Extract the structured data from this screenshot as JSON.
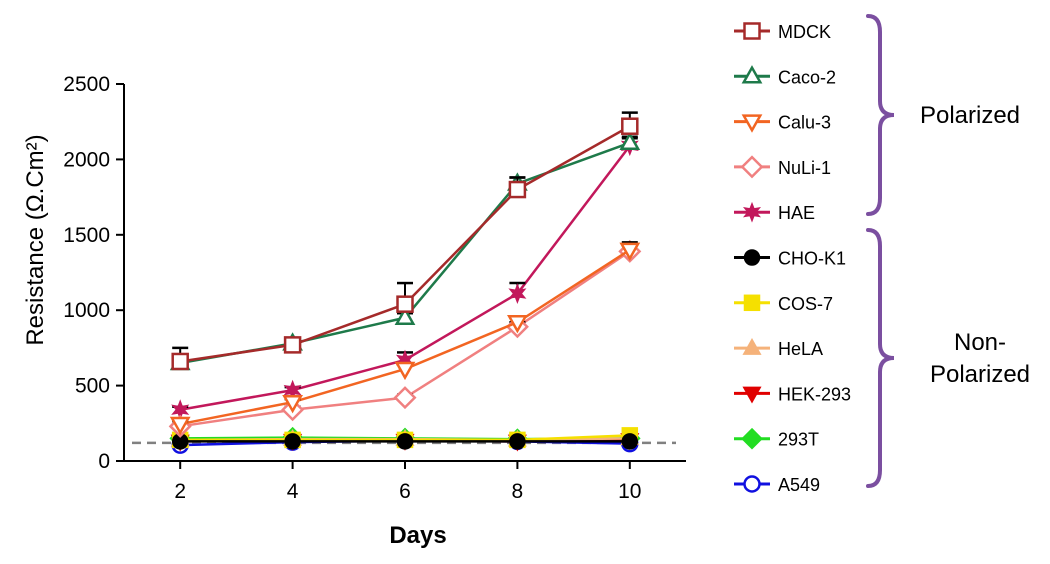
{
  "chart_data": {
    "type": "line",
    "xlabel": "Days",
    "ylabel": "Resistance (Ω.Cm²)",
    "x": [
      2,
      4,
      6,
      8,
      10
    ],
    "xlim": [
      1,
      11
    ],
    "ylim": [
      0,
      2500
    ],
    "x_ticks": [
      2,
      4,
      6,
      8,
      10
    ],
    "y_ticks": [
      0,
      500,
      1000,
      1500,
      2000,
      2500
    ],
    "reference_line": {
      "y": 120,
      "style": "dashed",
      "color": "#808080"
    },
    "grid": false,
    "legend_position": "right",
    "series": [
      {
        "name": "MDCK",
        "values": [
          660,
          770,
          1040,
          1800,
          2220
        ],
        "errors": [
          90,
          30,
          140,
          80,
          90
        ],
        "color": "#A52A2A",
        "marker": "square-open"
      },
      {
        "name": "Caco-2",
        "values": [
          650,
          780,
          950,
          1840,
          2110
        ],
        "errors": [
          40,
          20,
          30,
          40,
          30
        ],
        "color": "#1E7A4A",
        "marker": "triangle-up-open"
      },
      {
        "name": "Calu-3",
        "values": [
          245,
          390,
          610,
          920,
          1400
        ],
        "errors": [
          20,
          20,
          30,
          30,
          50
        ],
        "color": "#F26522",
        "marker": "triangle-down-open"
      },
      {
        "name": "NuLi-1",
        "values": [
          230,
          340,
          420,
          890,
          1390
        ],
        "errors": [
          15,
          20,
          20,
          30,
          40
        ],
        "color": "#F08080",
        "marker": "diamond-open"
      },
      {
        "name": "HAE",
        "values": [
          340,
          470,
          670,
          1110,
          2090
        ],
        "errors": [
          20,
          20,
          50,
          70,
          60
        ],
        "color": "#C2185B",
        "marker": "star"
      },
      {
        "name": "CHO-K1",
        "values": [
          130,
          130,
          130,
          130,
          130
        ],
        "color": "#000000",
        "marker": "circle"
      },
      {
        "name": "COS-7",
        "values": [
          140,
          140,
          140,
          140,
          170
        ],
        "color": "#F5E000",
        "marker": "square"
      },
      {
        "name": "HeLA",
        "values": [
          140,
          145,
          145,
          140,
          150
        ],
        "color": "#F5B27A",
        "marker": "triangle-up"
      },
      {
        "name": "HEK-293",
        "values": [
          130,
          135,
          135,
          130,
          140
        ],
        "color": "#E00000",
        "marker": "triangle-down"
      },
      {
        "name": "293T",
        "values": [
          150,
          155,
          150,
          145,
          150
        ],
        "color": "#22DD22",
        "marker": "diamond"
      },
      {
        "name": "A549",
        "values": [
          105,
          125,
          135,
          130,
          115
        ],
        "color": "#1010E0",
        "marker": "circle-open"
      }
    ],
    "groups": [
      {
        "label_lines": [
          "Polarized"
        ],
        "members": [
          "MDCK",
          "Caco-2",
          "Calu-3",
          "NuLi-1",
          "HAE"
        ]
      },
      {
        "label_lines": [
          "Non-",
          "Polarized"
        ],
        "members": [
          "CHO-K1",
          "COS-7",
          "HeLA",
          "HEK-293",
          "293T",
          "A549"
        ]
      }
    ],
    "bracket_color": "#7B4FA0"
  }
}
